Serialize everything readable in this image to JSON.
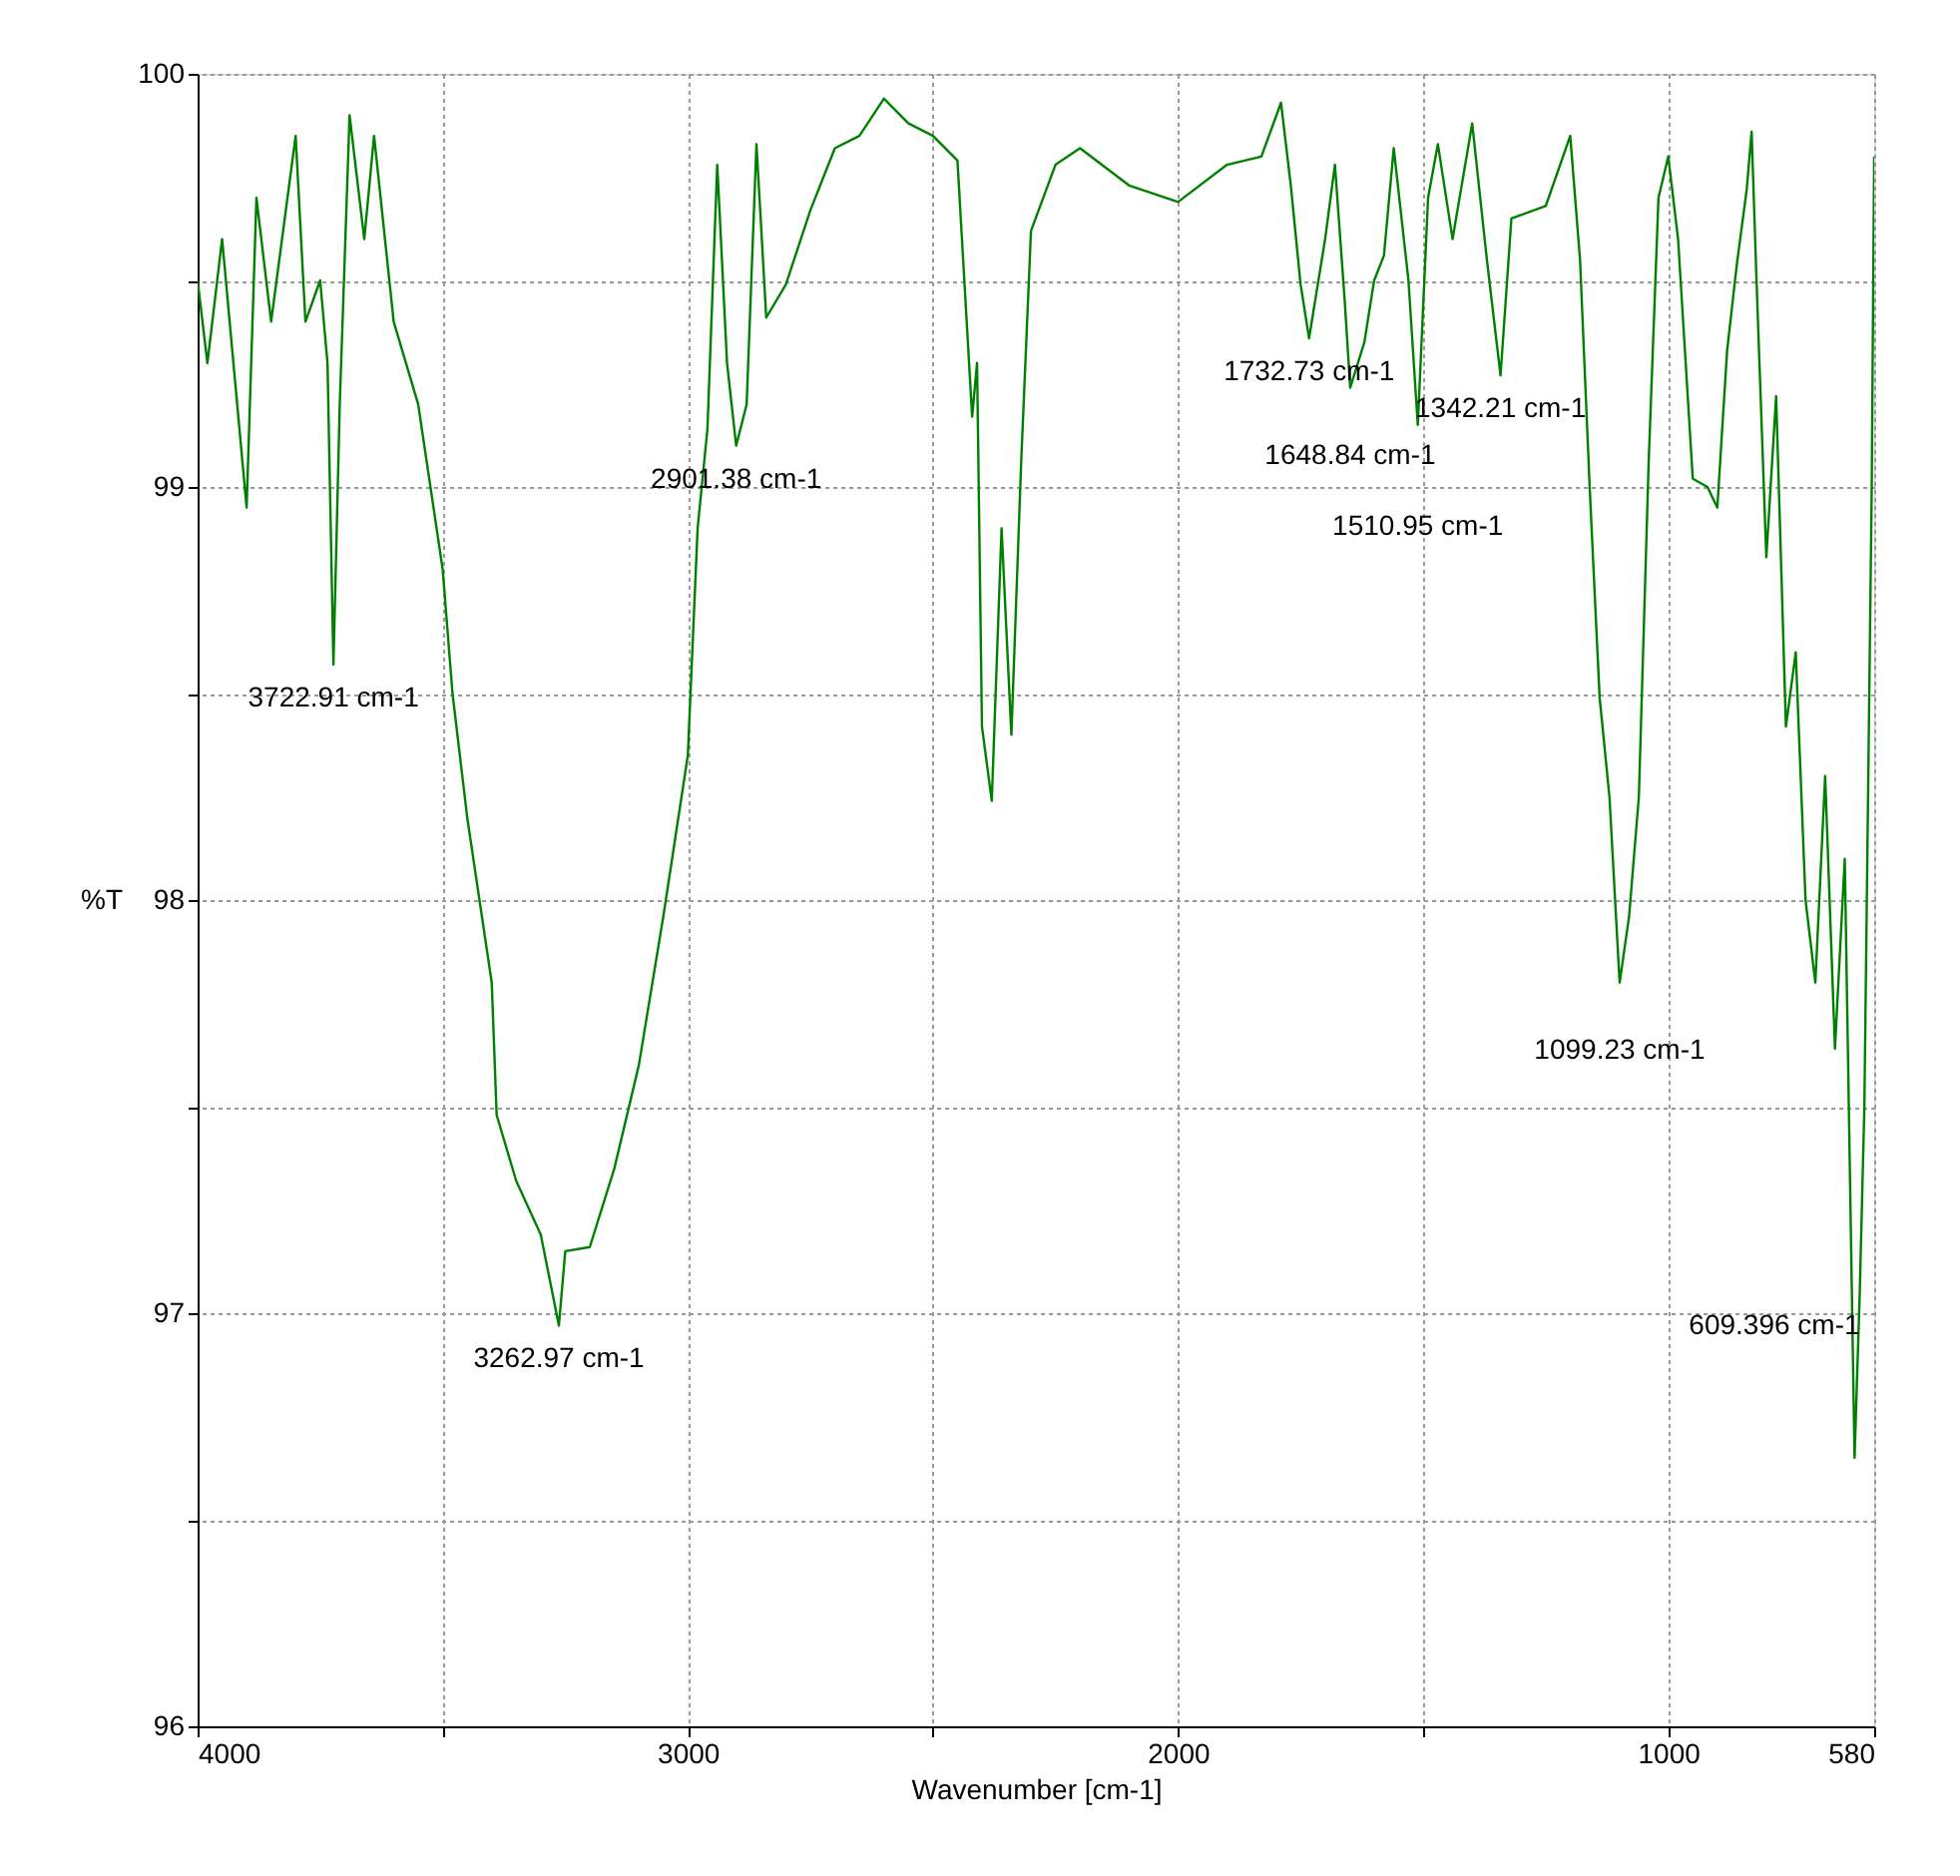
{
  "chart_data": {
    "type": "line",
    "xlabel": "Wavenumber [cm-1]",
    "ylabel": "%T",
    "xlim": [
      4000,
      580
    ],
    "ylim": [
      96,
      100
    ],
    "xticks": [
      4000,
      {
        "value": 3500,
        "label": null
      },
      3000,
      {
        "value": 2500,
        "label": null
      },
      2000,
      {
        "value": 1500,
        "label": null
      },
      1000,
      580
    ],
    "yticks": [
      96,
      {
        "value": 96.5,
        "label": null
      },
      97,
      {
        "value": 97.5,
        "label": null
      },
      98,
      {
        "value": 98.5,
        "label": null
      },
      99,
      {
        "value": 99.5,
        "label": null
      },
      100
    ],
    "grid": true,
    "marker": "none",
    "line_style": "solid",
    "series": [
      {
        "color": "#008000",
        "x": [
          4000,
          3980,
          3950,
          3900,
          3880,
          3850,
          3800,
          3780,
          3750,
          3735,
          3722.91,
          3710,
          3690,
          3660,
          3640,
          3600,
          3550,
          3500,
          3480,
          3450,
          3400,
          3390,
          3350,
          3300,
          3262.97,
          3250,
          3200,
          3150,
          3100,
          3050,
          3000,
          2980,
          2960,
          2940,
          2920,
          2901.38,
          2880,
          2860,
          2840,
          2800,
          2750,
          2700,
          2650,
          2600,
          2550,
          2500,
          2450,
          2420,
          2410,
          2400,
          2380,
          2360,
          2340,
          2320,
          2300,
          2250,
          2200,
          2100,
          2000,
          1900,
          1830,
          1790,
          1770,
          1750,
          1732.73,
          1700,
          1680,
          1660,
          1648.84,
          1620,
          1600,
          1580,
          1560,
          1530,
          1510.95,
          1490,
          1470,
          1440,
          1400,
          1370,
          1342.21,
          1320,
          1250,
          1200,
          1180,
          1160,
          1140,
          1120,
          1099.23,
          1080,
          1060,
          1040,
          1020,
          1000,
          980,
          950,
          920,
          900,
          880,
          860,
          840,
          830,
          820,
          800,
          780,
          760,
          740,
          720,
          700,
          680,
          660,
          640,
          620,
          609.396,
          600,
          590,
          585,
          580
        ],
        "values": [
          99.5,
          99.3,
          99.6,
          98.95,
          99.7,
          99.4,
          99.85,
          99.4,
          99.5,
          99.3,
          98.57,
          99.2,
          99.9,
          99.6,
          99.85,
          99.4,
          99.2,
          98.8,
          98.5,
          98.2,
          97.8,
          97.48,
          97.32,
          97.19,
          96.97,
          97.15,
          97.16,
          97.35,
          97.6,
          97.96,
          98.35,
          98.9,
          99.14,
          99.78,
          99.3,
          99.1,
          99.2,
          99.83,
          99.41,
          99.49,
          99.67,
          99.82,
          99.85,
          99.94,
          99.88,
          99.85,
          99.79,
          99.17,
          99.3,
          98.42,
          98.24,
          98.9,
          98.4,
          99.06,
          99.62,
          99.78,
          99.82,
          99.73,
          99.69,
          99.78,
          99.8,
          99.93,
          99.73,
          99.49,
          99.36,
          99.6,
          99.78,
          99.45,
          99.24,
          99.35,
          99.5,
          99.56,
          99.82,
          99.5,
          99.15,
          99.7,
          99.83,
          99.6,
          99.88,
          99.55,
          99.27,
          99.65,
          99.68,
          99.85,
          99.55,
          98.99,
          98.49,
          98.25,
          97.8,
          97.96,
          98.25,
          99.06,
          99.7,
          99.8,
          99.6,
          99.02,
          99.0,
          98.95,
          99.33,
          99.54,
          99.72,
          99.86,
          99.5,
          98.83,
          99.22,
          98.42,
          98.6,
          98.0,
          97.8,
          98.3,
          97.64,
          98.1,
          96.65,
          97.05,
          97.5,
          98.5,
          99.0,
          99.8
        ]
      }
    ],
    "annotations": [
      {
        "text": "3722.91 cm-1",
        "x": 3722.91,
        "y": 98.57
      },
      {
        "text": "3262.97 cm-1",
        "x": 3262.97,
        "y": 96.97
      },
      {
        "text": "2901.38 cm-1",
        "x": 2901.38,
        "y": 99.1
      },
      {
        "text": "1732.73 cm-1",
        "x": 1732.73,
        "y": 99.36
      },
      {
        "text": "1648.84 cm-1",
        "x": 1648.84,
        "y": 99.24
      },
      {
        "text": "1510.95 cm-1",
        "x": 1510.95,
        "y": 99.15
      },
      {
        "text": "1342.21 cm-1",
        "x": 1342.21,
        "y": 99.27
      },
      {
        "text": "1099.23 cm-1",
        "x": 1099.23,
        "y": 97.8
      },
      {
        "text": "609.396 cm-1",
        "x": 609.396,
        "y": 97.05
      }
    ]
  }
}
